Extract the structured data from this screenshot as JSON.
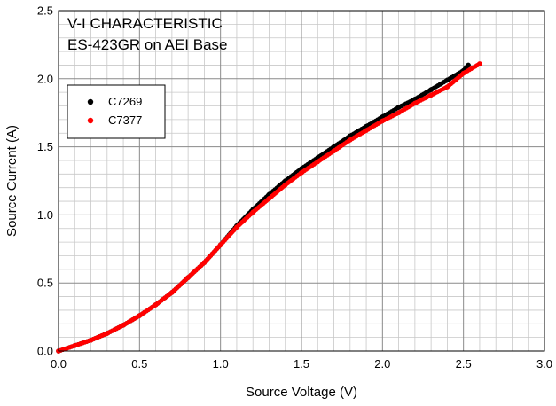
{
  "chart_data": {
    "type": "scatter",
    "title_lines": [
      "V-I CHARACTERISTIC",
      "ES-423GR on AEI Base"
    ],
    "xlabel": "Source Voltage (V)",
    "ylabel": "Source Current (A)",
    "xlim": [
      0,
      3.0
    ],
    "ylim": [
      0,
      2.5
    ],
    "xticks": [
      0,
      0.5,
      1.0,
      1.5,
      2.0,
      2.5,
      3.0
    ],
    "xtick_labels": [
      "0.0",
      "0.5",
      "1.0",
      "1.5",
      "2.0",
      "2.5",
      "3.0"
    ],
    "yticks": [
      0,
      0.5,
      1.0,
      1.5,
      2.0,
      2.5
    ],
    "ytick_labels": [
      "0.0",
      "0.5",
      "1.0",
      "1.5",
      "2.0",
      "2.5"
    ],
    "grid": true,
    "minor_grid_divisions": 5,
    "legend_position": "upper-left",
    "series": [
      {
        "name": "C7269",
        "color": "#000000",
        "points": [
          [
            0.0,
            0.0
          ],
          [
            0.1,
            0.04
          ],
          [
            0.2,
            0.08
          ],
          [
            0.3,
            0.13
          ],
          [
            0.4,
            0.19
          ],
          [
            0.5,
            0.26
          ],
          [
            0.6,
            0.34
          ],
          [
            0.7,
            0.43
          ],
          [
            0.8,
            0.54
          ],
          [
            0.9,
            0.65
          ],
          [
            1.0,
            0.78
          ],
          [
            1.1,
            0.92
          ],
          [
            1.2,
            1.04
          ],
          [
            1.3,
            1.15
          ],
          [
            1.4,
            1.25
          ],
          [
            1.5,
            1.34
          ],
          [
            1.6,
            1.42
          ],
          [
            1.7,
            1.5
          ],
          [
            1.8,
            1.58
          ],
          [
            1.9,
            1.65
          ],
          [
            2.0,
            1.72
          ],
          [
            2.1,
            1.79
          ],
          [
            2.2,
            1.85
          ],
          [
            2.3,
            1.92
          ],
          [
            2.4,
            1.99
          ],
          [
            2.5,
            2.06
          ],
          [
            2.53,
            2.1
          ]
        ]
      },
      {
        "name": "C7377",
        "color": "#ff0000",
        "points": [
          [
            0.0,
            0.0
          ],
          [
            0.1,
            0.04
          ],
          [
            0.2,
            0.08
          ],
          [
            0.3,
            0.13
          ],
          [
            0.4,
            0.19
          ],
          [
            0.5,
            0.26
          ],
          [
            0.6,
            0.34
          ],
          [
            0.7,
            0.43
          ],
          [
            0.8,
            0.54
          ],
          [
            0.9,
            0.65
          ],
          [
            1.0,
            0.78
          ],
          [
            1.1,
            0.91
          ],
          [
            1.2,
            1.02
          ],
          [
            1.3,
            1.12
          ],
          [
            1.4,
            1.22
          ],
          [
            1.5,
            1.31
          ],
          [
            1.6,
            1.39
          ],
          [
            1.7,
            1.47
          ],
          [
            1.8,
            1.55
          ],
          [
            1.9,
            1.62
          ],
          [
            2.0,
            1.69
          ],
          [
            2.1,
            1.75
          ],
          [
            2.2,
            1.82
          ],
          [
            2.3,
            1.88
          ],
          [
            2.4,
            1.94
          ],
          [
            2.5,
            2.04
          ],
          [
            2.6,
            2.11
          ]
        ]
      }
    ]
  }
}
